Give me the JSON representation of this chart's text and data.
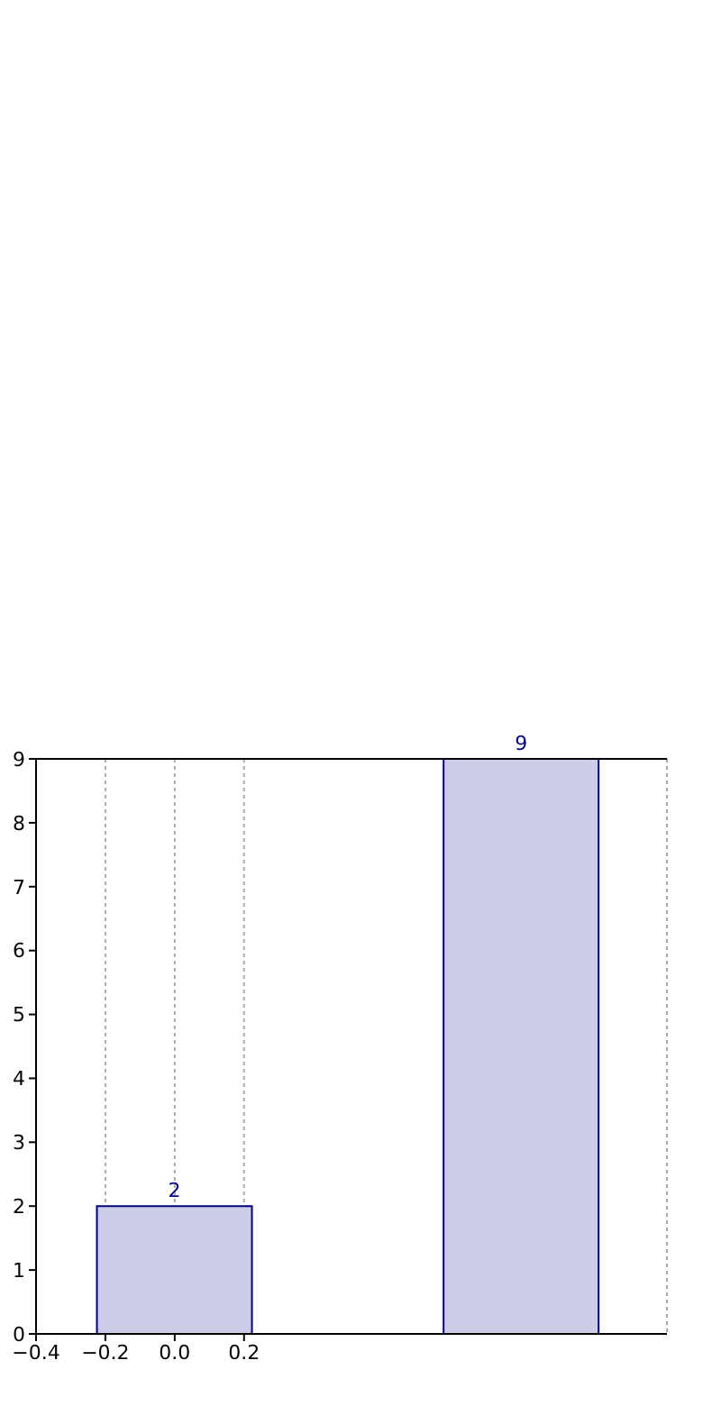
{
  "chart_data": {
    "type": "bar",
    "x": [
      0,
      1
    ],
    "values": [
      2,
      9
    ],
    "color": "#ccccE6",
    "data_labels": true,
    "xlim": [
      -0.4,
      1.42
    ],
    "xticks": [
      -0.4,
      -0.2,
      {
        "value": 0,
        "label": "0.0"
      },
      0.2
    ],
    "ylim": [
      0,
      9
    ],
    "yticks": [
      0,
      1,
      2,
      3,
      4,
      5,
      6,
      7,
      8,
      9
    ],
    "grid": "x"
  }
}
